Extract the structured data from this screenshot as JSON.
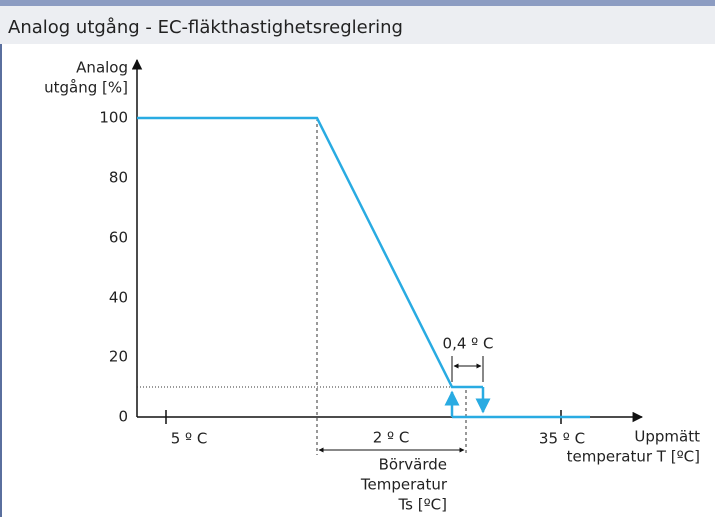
{
  "header": {
    "title": "Analog utgång - EC-fläkthastighetsreglering"
  },
  "diagram": {
    "y_axis_label": [
      "Analog",
      "utgång [%]"
    ],
    "y_ticks": [
      100,
      80,
      60,
      40,
      20,
      0
    ],
    "x_tick_labels": [
      "5 º C",
      "35 º C"
    ],
    "x_axis_label": [
      "Uppmätt",
      "temperatur T [ºC]"
    ],
    "band_label": "2 º C",
    "hysteresis_label": "0,4 º C",
    "setpoint_label": [
      "Börvärde",
      "Temperatur",
      "Ts [ºC]"
    ]
  }
}
